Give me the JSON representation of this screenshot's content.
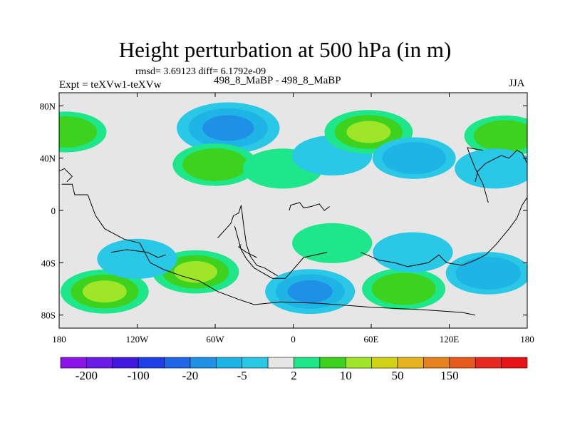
{
  "title": "Height perturbation at 500 hPa (in m)",
  "stats": "rmsd= 3.69123 diff= 6.1792e-09",
  "left_label": "Expt = teXVw1-teXVw",
  "center_label": "498_8_MaBP - 498_8_MaBP",
  "right_label": "JJA",
  "colors": {
    "background": "#e6e6e6",
    "levels_fill": [
      "#8a15e6",
      "#6a1be6",
      "#4018e0",
      "#1e3ee6",
      "#1e66e6",
      "#1e90e6",
      "#1eb4e6",
      "#28c8e6",
      "#e6e6e6",
      "#1ee68a",
      "#3cd21e",
      "#a0e628",
      "#d2d214",
      "#e6b41e",
      "#e6821e",
      "#e65a1e",
      "#e6281e",
      "#e61414"
    ]
  },
  "chart_data": {
    "type": "heatmap",
    "title": "Height perturbation at 500 hPa (in m)",
    "xlabel": "",
    "ylabel": "",
    "xlim": [
      -180,
      180
    ],
    "ylim": [
      -90,
      90
    ],
    "x_ticks": [
      -180,
      -120,
      -60,
      0,
      60,
      120,
      180
    ],
    "x_tick_labels": [
      "180",
      "120W",
      "60W",
      "0",
      "60E",
      "120E",
      "180"
    ],
    "y_ticks": [
      80,
      40,
      0,
      -40,
      -80
    ],
    "y_tick_labels": [
      "80N",
      "40N",
      "0",
      "40S",
      "80S"
    ],
    "colorbar_labels": [
      "-200",
      "-100",
      "-20",
      "-5",
      "2",
      "10",
      "50",
      "150"
    ],
    "features": [
      {
        "lon": -175,
        "lat": 60,
        "value": 5
      },
      {
        "lon": -52,
        "lat": 62,
        "value": -7
      },
      {
        "lon": -50,
        "lat": 63,
        "value": -18
      },
      {
        "lon": -60,
        "lat": 35,
        "value": 7
      },
      {
        "lon": -8,
        "lat": 32,
        "value": 4
      },
      {
        "lon": 30,
        "lat": 42,
        "value": -4
      },
      {
        "lon": 58,
        "lat": 60,
        "value": 9
      },
      {
        "lon": 93,
        "lat": 40,
        "value": -6
      },
      {
        "lon": 163,
        "lat": 57,
        "value": 5
      },
      {
        "lon": 155,
        "lat": 32,
        "value": -4
      },
      {
        "lon": -75,
        "lat": -47,
        "value": 8
      },
      {
        "lon": 30,
        "lat": -25,
        "value": 4
      },
      {
        "lon": 85,
        "lat": -60,
        "value": 6
      },
      {
        "lon": -145,
        "lat": -62,
        "value": 9
      },
      {
        "lon": -120,
        "lat": -37,
        "value": -4
      },
      {
        "lon": 13,
        "lat": -62,
        "value": -10
      },
      {
        "lon": 92,
        "lat": -32,
        "value": -4
      },
      {
        "lon": 150,
        "lat": -48,
        "value": -7
      }
    ]
  }
}
